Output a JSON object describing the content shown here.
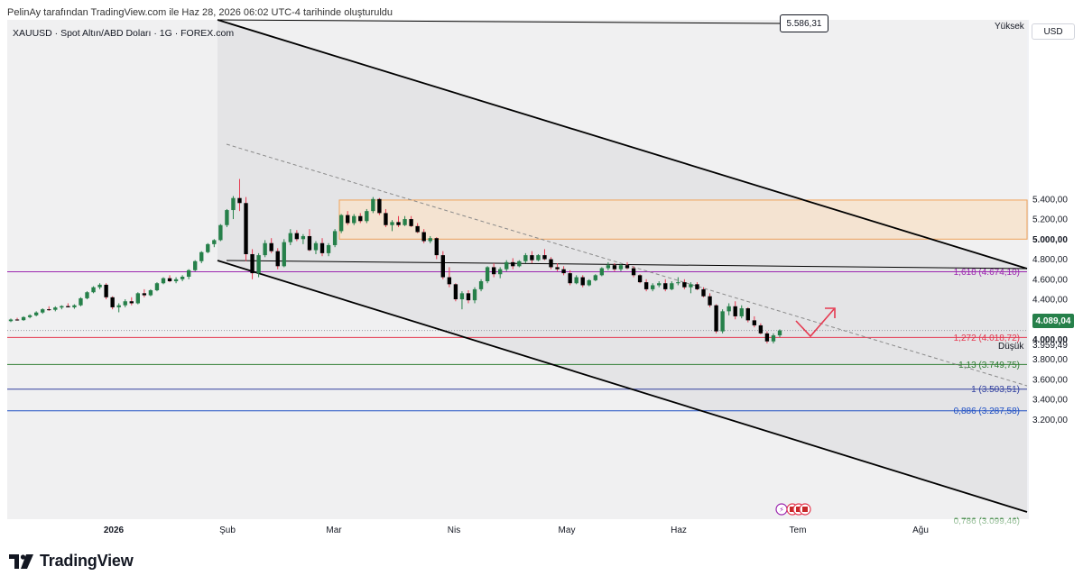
{
  "header": {
    "attribution": "PelinAy tarafından TradingView.com ile Haz 28, 2026 06:02 UTC-4 tarihinde oluşturuldu",
    "symbol_line": "XAUUSD · Spot Altın/ABD Doları · 1G · FOREX.com"
  },
  "footer": {
    "logo_text": "TradingView"
  },
  "axis": {
    "currency": "USD",
    "high_label": "Yüksek",
    "high_value": "5.586,31",
    "low_label": "Düşük",
    "low_value": "3.959,49",
    "current_price": "4.089,04"
  },
  "colors": {
    "up": "#26804a",
    "down": "#000000",
    "current": "#26804a",
    "fib_1618": "#9c27b0",
    "fib_1272": "#e53950",
    "fib_113": "#2e7d32",
    "fib_1": "#303f9f",
    "fib_0886": "#1e4fc4",
    "zone": "#f0a35b",
    "projection": "#e53950"
  },
  "chart_data": {
    "type": "candlestick",
    "x_ticks": [
      "2026",
      "Şub",
      "Mar",
      "Nis",
      "May",
      "Haz",
      "Tem",
      "Ağu"
    ],
    "y_ticks": [
      "3.200,00",
      "3.400,00",
      "3.600,00",
      "3.800,00",
      "4.000,00",
      "4.200,00",
      "4.400,00",
      "4.600,00",
      "4.800,00",
      "5.000,00",
      "5.200,00",
      "5.400,00"
    ],
    "ylim": [
      3100,
      5600
    ],
    "fib_levels": [
      {
        "label": "1,618 (4.674,10)",
        "value": 4674.1
      },
      {
        "label": "1,272 (4.018,72)",
        "value": 4018.72
      },
      {
        "label": "1,13 (3.749,75)",
        "value": 3749.75
      },
      {
        "label": "1 (3.503,51)",
        "value": 3503.51
      },
      {
        "label": "0,886 (3.287,58)",
        "value": 3287.58
      }
    ],
    "fib_partial_label": "0,786 (3.099,46)",
    "resistance_zone": {
      "top": 5390,
      "bottom": 5000
    },
    "candles": [
      [
        4182,
        4208,
        4172,
        4198
      ],
      [
        4198,
        4215,
        4186,
        4192
      ],
      [
        4192,
        4230,
        4185,
        4222
      ],
      [
        4222,
        4250,
        4210,
        4240
      ],
      [
        4240,
        4280,
        4230,
        4268
      ],
      [
        4268,
        4310,
        4255,
        4300
      ],
      [
        4300,
        4330,
        4285,
        4295
      ],
      [
        4295,
        4330,
        4280,
        4318
      ],
      [
        4318,
        4340,
        4300,
        4332
      ],
      [
        4332,
        4360,
        4320,
        4320
      ],
      [
        4320,
        4350,
        4305,
        4340
      ],
      [
        4340,
        4420,
        4330,
        4410
      ],
      [
        4410,
        4480,
        4400,
        4470
      ],
      [
        4470,
        4530,
        4460,
        4520
      ],
      [
        4520,
        4560,
        4500,
        4545
      ],
      [
        4545,
        4560,
        4400,
        4420
      ],
      [
        4420,
        4430,
        4300,
        4320
      ],
      [
        4320,
        4360,
        4270,
        4340
      ],
      [
        4340,
        4400,
        4320,
        4380
      ],
      [
        4380,
        4420,
        4340,
        4360
      ],
      [
        4360,
        4470,
        4350,
        4460
      ],
      [
        4460,
        4500,
        4420,
        4440
      ],
      [
        4440,
        4500,
        4430,
        4490
      ],
      [
        4490,
        4570,
        4480,
        4560
      ],
      [
        4560,
        4620,
        4550,
        4610
      ],
      [
        4610,
        4640,
        4570,
        4580
      ],
      [
        4580,
        4620,
        4560,
        4600
      ],
      [
        4600,
        4640,
        4580,
        4625
      ],
      [
        4625,
        4700,
        4600,
        4690
      ],
      [
        4690,
        4790,
        4680,
        4780
      ],
      [
        4780,
        4880,
        4760,
        4870
      ],
      [
        4870,
        4960,
        4860,
        4950
      ],
      [
        4950,
        5000,
        4920,
        4990
      ],
      [
        4990,
        5150,
        4980,
        5140
      ],
      [
        5140,
        5300,
        5120,
        5290
      ],
      [
        5290,
        5430,
        5200,
        5410
      ],
      [
        5410,
        5600,
        5280,
        5360
      ],
      [
        5360,
        5420,
        4780,
        4850
      ],
      [
        4850,
        4900,
        4600,
        4660
      ],
      [
        4660,
        4860,
        4620,
        4840
      ],
      [
        4840,
        4990,
        4820,
        4960
      ],
      [
        4960,
        5010,
        4860,
        4880
      ],
      [
        4880,
        4910,
        4700,
        4730
      ],
      [
        4730,
        5000,
        4720,
        4970
      ],
      [
        4970,
        5100,
        4940,
        5060
      ],
      [
        5060,
        5090,
        4980,
        5000
      ],
      [
        5000,
        5050,
        4950,
        5030
      ],
      [
        5030,
        5100,
        4880,
        4890
      ],
      [
        4890,
        4980,
        4850,
        4960
      ],
      [
        4960,
        5010,
        4830,
        4860
      ],
      [
        4860,
        4960,
        4830,
        4940
      ],
      [
        4940,
        5100,
        4920,
        5080
      ],
      [
        5080,
        5250,
        5060,
        5240
      ],
      [
        5240,
        5280,
        5140,
        5160
      ],
      [
        5160,
        5250,
        5140,
        5230
      ],
      [
        5230,
        5260,
        5160,
        5180
      ],
      [
        5180,
        5300,
        5160,
        5280
      ],
      [
        5280,
        5420,
        5260,
        5400
      ],
      [
        5400,
        5410,
        5240,
        5260
      ],
      [
        5260,
        5300,
        5120,
        5140
      ],
      [
        5140,
        5190,
        5080,
        5170
      ],
      [
        5170,
        5230,
        5120,
        5140
      ],
      [
        5140,
        5230,
        5130,
        5200
      ],
      [
        5200,
        5230,
        5120,
        5130
      ],
      [
        5130,
        5160,
        5060,
        5070
      ],
      [
        5070,
        5100,
        4960,
        4980
      ],
      [
        4980,
        5030,
        4960,
        5010
      ],
      [
        5010,
        5020,
        4800,
        4840
      ],
      [
        4840,
        4880,
        4600,
        4620
      ],
      [
        4620,
        4720,
        4520,
        4550
      ],
      [
        4550,
        4560,
        4380,
        4400
      ],
      [
        4400,
        4480,
        4300,
        4460
      ],
      [
        4460,
        4490,
        4360,
        4390
      ],
      [
        4390,
        4520,
        4360,
        4500
      ],
      [
        4500,
        4600,
        4480,
        4580
      ],
      [
        4580,
        4730,
        4560,
        4720
      ],
      [
        4720,
        4760,
        4620,
        4650
      ],
      [
        4650,
        4720,
        4610,
        4700
      ],
      [
        4700,
        4790,
        4680,
        4770
      ],
      [
        4770,
        4810,
        4700,
        4730
      ],
      [
        4730,
        4790,
        4720,
        4780
      ],
      [
        4780,
        4860,
        4760,
        4840
      ],
      [
        4840,
        4880,
        4760,
        4790
      ],
      [
        4790,
        4850,
        4780,
        4840
      ],
      [
        4840,
        4900,
        4790,
        4800
      ],
      [
        4800,
        4820,
        4700,
        4720
      ],
      [
        4720,
        4760,
        4680,
        4700
      ],
      [
        4700,
        4730,
        4640,
        4660
      ],
      [
        4660,
        4690,
        4540,
        4560
      ],
      [
        4560,
        4640,
        4550,
        4620
      ],
      [
        4620,
        4640,
        4520,
        4540
      ],
      [
        4540,
        4600,
        4530,
        4590
      ],
      [
        4590,
        4650,
        4580,
        4640
      ],
      [
        4640,
        4720,
        4630,
        4710
      ],
      [
        4710,
        4770,
        4690,
        4740
      ],
      [
        4740,
        4760,
        4680,
        4700
      ],
      [
        4700,
        4750,
        4680,
        4740
      ],
      [
        4740,
        4770,
        4700,
        4710
      ],
      [
        4710,
        4730,
        4620,
        4640
      ],
      [
        4640,
        4650,
        4560,
        4570
      ],
      [
        4570,
        4600,
        4480,
        4500
      ],
      [
        4500,
        4560,
        4480,
        4540
      ],
      [
        4540,
        4580,
        4520,
        4560
      ],
      [
        4560,
        4600,
        4480,
        4500
      ],
      [
        4500,
        4580,
        4490,
        4560
      ],
      [
        4560,
        4620,
        4540,
        4570
      ],
      [
        4570,
        4600,
        4500,
        4520
      ],
      [
        4520,
        4570,
        4460,
        4550
      ],
      [
        4550,
        4570,
        4490,
        4500
      ],
      [
        4500,
        4520,
        4420,
        4430
      ],
      [
        4430,
        4460,
        4320,
        4340
      ],
      [
        4340,
        4350,
        4060,
        4080
      ],
      [
        4080,
        4300,
        4060,
        4280
      ],
      [
        4280,
        4360,
        4240,
        4330
      ],
      [
        4330,
        4380,
        4200,
        4230
      ],
      [
        4230,
        4340,
        4210,
        4310
      ],
      [
        4310,
        4320,
        4170,
        4190
      ],
      [
        4190,
        4230,
        4120,
        4140
      ],
      [
        4140,
        4160,
        4050,
        4060
      ],
      [
        4060,
        4080,
        3960,
        3980
      ],
      [
        3980,
        4060,
        3960,
        4040
      ],
      [
        4040,
        4100,
        4020,
        4089
      ]
    ]
  }
}
